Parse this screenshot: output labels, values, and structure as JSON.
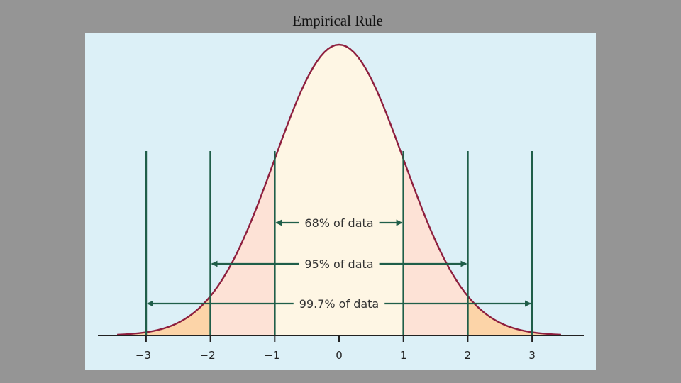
{
  "slide": {
    "title": "Empirical Rule"
  },
  "chart_data": {
    "type": "area",
    "title": "Empirical Rule",
    "distribution": "standard-normal",
    "x_ticks": [
      -3,
      -2,
      -1,
      0,
      1,
      2,
      3
    ],
    "tick_labels": [
      "−3",
      "−2",
      "−1",
      "0",
      "1",
      "2",
      "3"
    ],
    "xlim": [
      -3.45,
      3.45
    ],
    "bands": [
      {
        "label": "68% of data",
        "from": -1,
        "to": 1,
        "percent": 68
      },
      {
        "label": "95% of data",
        "from": -2,
        "to": 2,
        "percent": 95
      },
      {
        "label": "99.7% of data",
        "from": -3,
        "to": 3,
        "percent": 99.7
      }
    ],
    "colors": {
      "panel_bg": "#dcf0f7",
      "curve": "#8e1f3e",
      "lines": "#1f5e49",
      "fill_inner": "#fef6e4",
      "fill_middle": "#fde2d6",
      "fill_outer": "#fcd4a8"
    },
    "grid": false
  }
}
